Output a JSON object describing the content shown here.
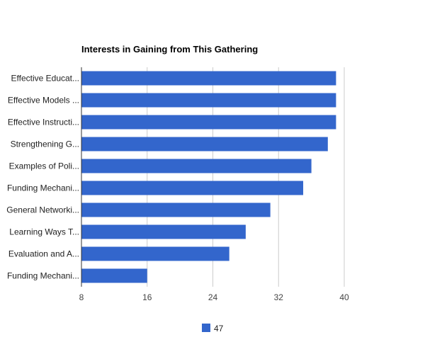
{
  "chart_data": {
    "type": "bar",
    "orientation": "horizontal",
    "title": "Interests in Gaining from This Gathering",
    "categories": [
      "Effective Educat...",
      "Effective Models ...",
      "Effective Instructi...",
      "Strengthening G...",
      "Examples of Poli...",
      "Funding Mechani...",
      "General Networki...",
      "Learning Ways T...",
      "Evaluation and A...",
      "Funding Mechani..."
    ],
    "series": [
      {
        "name": "47",
        "values": [
          39,
          39,
          39,
          38,
          36,
          35,
          31,
          28,
          26,
          16
        ]
      }
    ],
    "xlim": [
      8,
      40
    ],
    "xticks": [
      8,
      16,
      24,
      32,
      40
    ],
    "grid": true,
    "legend_position": "bottom",
    "colors": {
      "bar": "#3366cc",
      "grid": "#cccccc",
      "axis": "#333333"
    }
  }
}
